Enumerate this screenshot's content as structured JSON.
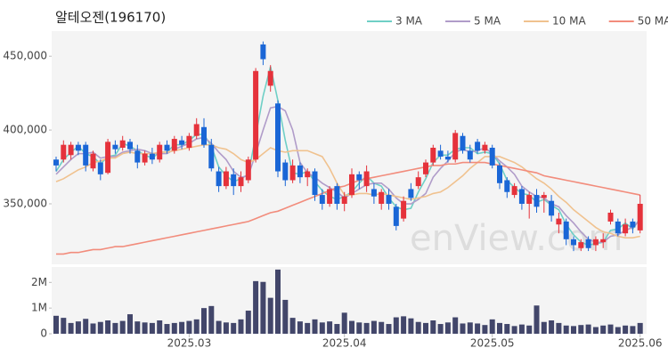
{
  "chart_data": [
    {
      "type": "candlestick",
      "title": "알테오젠(196170)",
      "watermark": "enView.com",
      "legend": "top-right",
      "up_color": "#e5323b",
      "down_color": "#1a66d6",
      "ylim": [
        309000,
        467000
      ],
      "yticks": [
        {
          "value": 350000,
          "label": "350,000"
        },
        {
          "value": 400000,
          "label": "400,000"
        },
        {
          "value": 450000,
          "label": "450,000"
        }
      ],
      "open": [
        380000,
        380000,
        383000,
        390000,
        390000,
        374000,
        378000,
        371000,
        390000,
        388000,
        392000,
        386000,
        378000,
        384000,
        380000,
        390000,
        386000,
        393000,
        388000,
        396000,
        402000,
        390000,
        372000,
        362000,
        370000,
        362000,
        366000,
        380000,
        458000,
        430000,
        418000,
        378000,
        366000,
        376000,
        368000,
        372000,
        356000,
        350000,
        362000,
        350000,
        356000,
        370000,
        362000,
        360000,
        350000,
        356000,
        348000,
        340000,
        360000,
        362000,
        370000,
        378000,
        386000,
        382000,
        380000,
        396000,
        386000,
        392000,
        386000,
        388000,
        376000,
        366000,
        356000,
        360000,
        350000,
        356000,
        354000,
        352000,
        336000,
        338000,
        326000,
        320000,
        326000,
        322000,
        324000,
        338000,
        338000,
        330000,
        338000,
        332000
      ],
      "high": [
        382000,
        393000,
        392000,
        392000,
        392000,
        386000,
        380000,
        394000,
        393000,
        396000,
        394000,
        390000,
        386000,
        388000,
        392000,
        393000,
        396000,
        396000,
        398000,
        408000,
        408000,
        394000,
        375000,
        375000,
        374000,
        372000,
        382000,
        442000,
        460000,
        444000,
        420000,
        380000,
        380000,
        378000,
        374000,
        374000,
        360000,
        362000,
        364000,
        358000,
        374000,
        372000,
        376000,
        364000,
        360000,
        360000,
        350000,
        355000,
        364000,
        372000,
        380000,
        390000,
        390000,
        386000,
        400000,
        398000,
        390000,
        394000,
        392000,
        390000,
        378000,
        368000,
        364000,
        362000,
        358000,
        360000,
        358000,
        356000,
        344000,
        340000,
        328000,
        326000,
        328000,
        328000,
        330000,
        346000,
        340000,
        340000,
        340000,
        356000
      ],
      "low": [
        372000,
        378000,
        380000,
        383000,
        372000,
        372000,
        366000,
        370000,
        384000,
        386000,
        384000,
        374000,
        376000,
        377000,
        378000,
        384000,
        384000,
        387000,
        386000,
        394000,
        388000,
        372000,
        358000,
        360000,
        356000,
        358000,
        364000,
        378000,
        444000,
        426000,
        368000,
        362000,
        364000,
        364000,
        362000,
        352000,
        346000,
        348000,
        346000,
        345000,
        354000,
        360000,
        358000,
        350000,
        346000,
        346000,
        332000,
        338000,
        352000,
        360000,
        368000,
        376000,
        380000,
        378000,
        378000,
        384000,
        378000,
        384000,
        384000,
        374000,
        360000,
        354000,
        354000,
        346000,
        340000,
        344000,
        344000,
        338000,
        330000,
        322000,
        318000,
        318000,
        318000,
        318000,
        320000,
        336000,
        328000,
        328000,
        330000,
        330000
      ],
      "close": [
        376000,
        390000,
        390000,
        386000,
        376000,
        384000,
        370000,
        392000,
        387000,
        393000,
        387000,
        378000,
        384000,
        380000,
        390000,
        386000,
        394000,
        390000,
        396000,
        404000,
        390000,
        374000,
        362000,
        372000,
        362000,
        368000,
        380000,
        440000,
        448000,
        440000,
        372000,
        366000,
        376000,
        368000,
        372000,
        356000,
        350000,
        360000,
        350000,
        355000,
        370000,
        366000,
        372000,
        355000,
        358000,
        350000,
        335000,
        352000,
        354000,
        368000,
        378000,
        388000,
        382000,
        380000,
        398000,
        386000,
        380000,
        386000,
        390000,
        376000,
        364000,
        358000,
        362000,
        350000,
        356000,
        348000,
        356000,
        342000,
        340000,
        326000,
        322000,
        324000,
        320000,
        326000,
        326000,
        344000,
        330000,
        336000,
        334000,
        350000
      ],
      "series": [
        {
          "name": "3 MA",
          "color": "#6fcfc6",
          "values": [
            372000,
            380000,
            385000,
            389000,
            384000,
            382000,
            377000,
            382000,
            383000,
            391000,
            389000,
            386000,
            383000,
            381000,
            385000,
            385000,
            390000,
            390000,
            393000,
            397000,
            397000,
            389000,
            375000,
            369000,
            365000,
            367000,
            370000,
            396000,
            423000,
            443000,
            420000,
            393000,
            371000,
            370000,
            372000,
            365000,
            359000,
            355000,
            353000,
            355000,
            358000,
            364000,
            369000,
            364000,
            362000,
            354000,
            348000,
            346000,
            347000,
            358000,
            367000,
            378000,
            383000,
            383000,
            387000,
            388000,
            388000,
            384000,
            385000,
            384000,
            377000,
            366000,
            361000,
            357000,
            356000,
            351000,
            353000,
            349000,
            346000,
            336000,
            329000,
            324000,
            322000,
            323000,
            324000,
            332000,
            333000,
            337000,
            333000,
            340000
          ]
        },
        {
          "name": "5 MA",
          "color": "#b09cc9",
          "values": [
            370000,
            375000,
            380000,
            384000,
            384000,
            385000,
            381000,
            382000,
            382000,
            385000,
            386000,
            387000,
            386000,
            384000,
            384000,
            384000,
            387000,
            389000,
            391000,
            394000,
            395000,
            391000,
            385000,
            380000,
            372000,
            368000,
            369000,
            384000,
            400000,
            415000,
            416000,
            413000,
            400000,
            378000,
            371000,
            368000,
            364000,
            361000,
            358000,
            354000,
            357000,
            360000,
            363000,
            364000,
            364000,
            360000,
            354000,
            350000,
            350000,
            353000,
            357000,
            368000,
            374000,
            379000,
            385000,
            387000,
            385000,
            386000,
            388000,
            384000,
            379000,
            375000,
            370000,
            362000,
            358000,
            355000,
            354000,
            350000,
            348000,
            342000,
            337000,
            331000,
            326000,
            324000,
            324000,
            328000,
            329000,
            332000,
            334000,
            339000
          ]
        },
        {
          "name": "10 MA",
          "color": "#f0c28f",
          "values": [
            365000,
            367000,
            370000,
            373000,
            375000,
            378000,
            379000,
            381000,
            381000,
            384000,
            385000,
            384000,
            384000,
            384000,
            385000,
            385000,
            386000,
            387000,
            388000,
            389000,
            390000,
            390000,
            388000,
            387000,
            384000,
            380000,
            378000,
            380000,
            384000,
            388000,
            386000,
            385000,
            386000,
            386000,
            386000,
            384000,
            382000,
            374000,
            364000,
            356000,
            356000,
            357000,
            357000,
            356000,
            357000,
            356000,
            355000,
            354000,
            353000,
            354000,
            355000,
            357000,
            358000,
            361000,
            365000,
            369000,
            374000,
            378000,
            382000,
            382000,
            382000,
            380000,
            378000,
            375000,
            371000,
            367000,
            364000,
            360000,
            355000,
            351000,
            346000,
            342000,
            338000,
            334000,
            331000,
            330000,
            328000,
            327000,
            327000,
            328000
          ]
        },
        {
          "name": "50 MA",
          "color": "#f28c7c",
          "values": [
            316000,
            316000,
            317000,
            317000,
            318000,
            319000,
            319000,
            320000,
            321000,
            321000,
            322000,
            323000,
            324000,
            325000,
            326000,
            327000,
            328000,
            329000,
            330000,
            331000,
            332000,
            333000,
            334000,
            335000,
            336000,
            337000,
            338000,
            340000,
            342000,
            344000,
            345000,
            347000,
            349000,
            351000,
            353000,
            355000,
            357000,
            359000,
            361000,
            362000,
            364000,
            366000,
            367000,
            368000,
            369000,
            370000,
            371000,
            372000,
            373000,
            374000,
            375000,
            376000,
            376000,
            377000,
            377000,
            378000,
            378000,
            378000,
            378000,
            377000,
            376000,
            375000,
            374000,
            373000,
            372000,
            371000,
            369000,
            368000,
            367000,
            366000,
            365000,
            364000,
            363000,
            362000,
            361000,
            360000,
            359000,
            358000,
            357000,
            356000
          ]
        }
      ]
    },
    {
      "type": "bar",
      "color": "#42466a",
      "ylim": [
        0,
        2600000
      ],
      "yticks": [
        0,
        {
          "value": 1000000,
          "label": "1M"
        },
        {
          "value": 2000000,
          "label": "2M"
        }
      ],
      "categories": [
        null,
        null,
        null,
        null,
        null,
        null,
        null,
        null,
        null,
        null,
        null,
        null,
        null,
        null,
        null,
        null,
        null,
        null,
        "2025.03",
        null,
        null,
        null,
        null,
        null,
        null,
        null,
        null,
        null,
        null,
        null,
        null,
        null,
        null,
        null,
        null,
        null,
        null,
        null,
        null,
        "2025.04",
        null,
        null,
        null,
        null,
        null,
        null,
        null,
        null,
        null,
        null,
        null,
        null,
        null,
        null,
        null,
        null,
        null,
        null,
        null,
        "2025.05",
        null,
        null,
        null,
        null,
        null,
        null,
        null,
        null,
        null,
        null,
        null,
        null,
        null,
        null,
        null,
        null,
        null,
        null,
        null,
        "2025.06"
      ],
      "values": [
        700000,
        620000,
        420000,
        480000,
        580000,
        400000,
        460000,
        520000,
        420000,
        500000,
        760000,
        480000,
        440000,
        420000,
        520000,
        380000,
        420000,
        460000,
        500000,
        560000,
        1000000,
        1080000,
        500000,
        440000,
        420000,
        560000,
        900000,
        2050000,
        2020000,
        1400000,
        2500000,
        1320000,
        620000,
        480000,
        420000,
        560000,
        440000,
        480000,
        380000,
        820000,
        500000,
        440000,
        420000,
        500000,
        460000,
        380000,
        640000,
        680000,
        600000,
        460000,
        420000,
        520000,
        380000,
        440000,
        640000,
        400000,
        440000,
        400000,
        340000,
        560000,
        420000,
        380000,
        300000,
        360000,
        320000,
        1100000,
        460000,
        520000,
        420000,
        320000,
        300000,
        340000,
        360000,
        260000,
        320000,
        360000,
        260000,
        320000,
        300000,
        420000
      ]
    }
  ]
}
